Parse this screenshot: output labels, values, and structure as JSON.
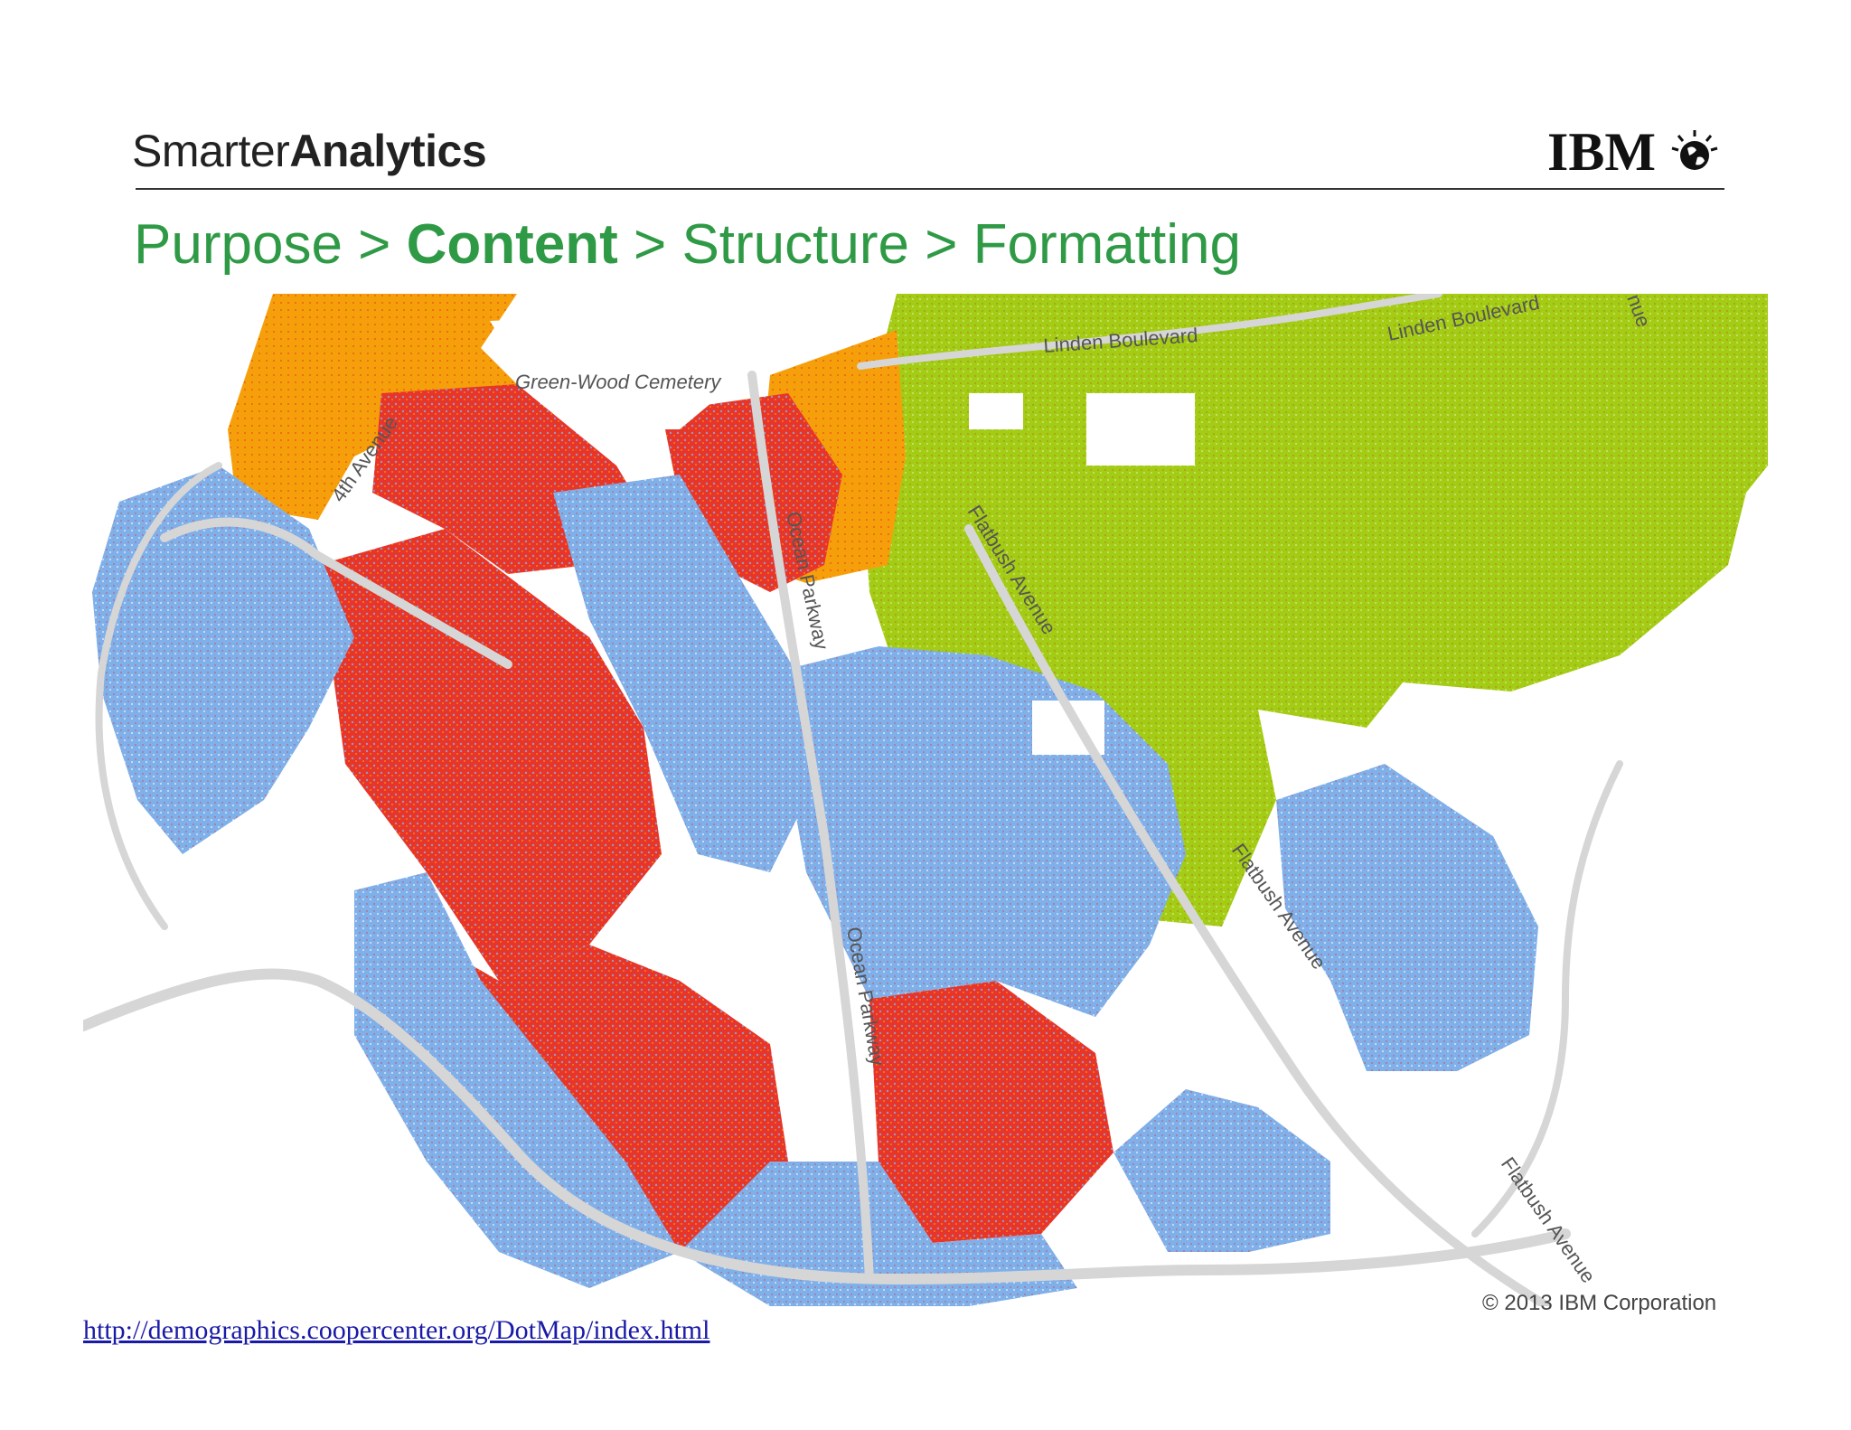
{
  "brand": {
    "light": "Smarter",
    "bold": "Analytics"
  },
  "logo": {
    "text": "IBM",
    "icon": "globe-bee-icon"
  },
  "breadcrumb": {
    "step1": "Purpose",
    "sep1": " > ",
    "step2": "Content",
    "sep2": " > ",
    "step3": "Structure",
    "sep3": " > ",
    "step4": "Formatting"
  },
  "map": {
    "labels": {
      "cemetery": "Green-Wood Cemetery",
      "fourth_ave": "4th Avenue",
      "linden_1": "Linden Boulevard",
      "linden_2": "Linden Boulevard",
      "ocean_1": "Ocean Parkway",
      "ocean_2": "Ocean Parkway",
      "flatbush_1": "Flatbush Avenue",
      "flatbush_2": "Flatbush Avenue",
      "flatbush_3": "Flatbush Avenue",
      "avenue_edge": "nue"
    },
    "colors": {
      "white_pop": "#7fb0ea",
      "black_pop": "#a3cc14",
      "asian_pop": "#f02d1e",
      "hispanic_pop": "#f5a00a",
      "road": "#d6d6d6"
    }
  },
  "copyright": "© 2013 IBM Corporation",
  "source_link": "http://demographics.coopercenter.org/DotMap/index.html"
}
